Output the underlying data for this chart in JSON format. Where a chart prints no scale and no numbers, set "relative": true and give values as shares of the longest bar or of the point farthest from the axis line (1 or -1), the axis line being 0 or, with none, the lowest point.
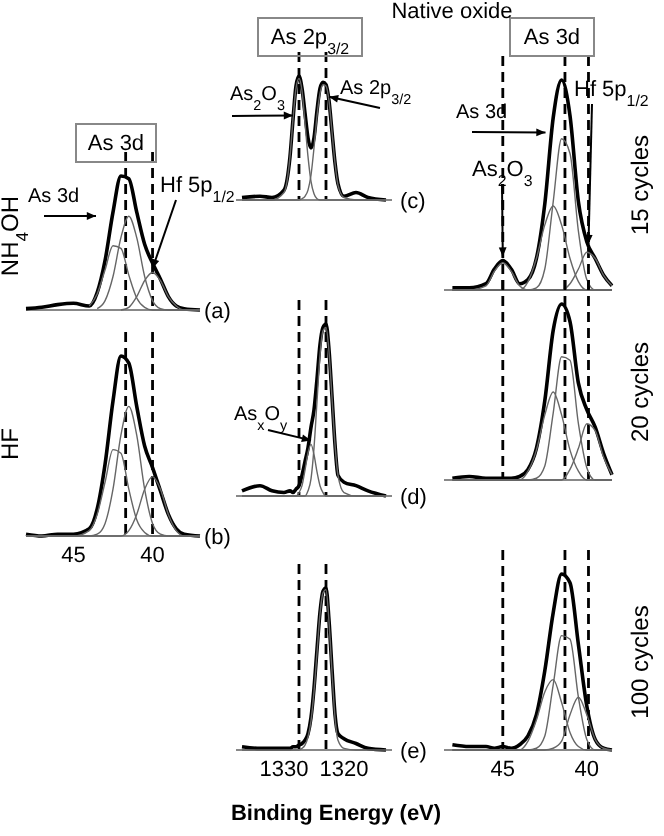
{
  "chart_data": [
    {
      "type": "line",
      "relative": true,
      "title": "As 3d",
      "ylabel": "NH$_{4}$OH",
      "x": [
        48,
        47,
        46,
        45,
        44,
        43.5,
        43,
        42.5,
        42,
        41.5,
        41,
        40.5,
        40,
        39.5,
        39,
        38.5,
        38,
        37
      ],
      "xlim": [
        48,
        37
      ],
      "xticks": [
        45,
        40
      ],
      "tick_labels": false,
      "series": [
        {
          "color": "#000000",
          "values": [
            0.01,
            0.02,
            0.04,
            0.05,
            0.03,
            0.13,
            0.37,
            0.73,
            1.0,
            0.98,
            0.73,
            0.49,
            0.35,
            0.23,
            0.1,
            0.03,
            0.01,
            0
          ]
        },
        {
          "color": "#666666",
          "values": [
            null,
            null,
            null,
            null,
            0.03,
            0.12,
            0.3,
            0.48,
            0.46,
            0.26,
            0.09,
            0.02,
            0,
            0,
            0,
            0,
            0,
            0
          ]
        },
        {
          "color": "#666666",
          "values": [
            null,
            null,
            null,
            null,
            null,
            0.01,
            0.07,
            0.25,
            0.54,
            0.7,
            0.54,
            0.25,
            0.07,
            0.01,
            0,
            0,
            0,
            0
          ]
        },
        {
          "color": "#666666",
          "values": [
            null,
            null,
            null,
            null,
            null,
            null,
            null,
            null,
            0,
            0.02,
            0.1,
            0.22,
            0.28,
            0.22,
            0.1,
            0.03,
            0,
            0
          ]
        }
      ],
      "ref_lines": [
        {
          "axis": "x",
          "value": 41.7,
          "color": "#000000",
          "line_style": "dashed"
        },
        {
          "axis": "x",
          "value": 40.0,
          "color": "#000000",
          "line_style": "dashed"
        }
      ],
      "annotations": [
        "As 3d",
        {
          "text": "Hf 5p$_{1/2}$",
          "x": 40.0,
          "y": 0.28
        },
        "(a)"
      ]
    },
    {
      "type": "line",
      "relative": true,
      "ylabel": "HF",
      "x": [
        48,
        47,
        46,
        45,
        44,
        43.5,
        43,
        42.5,
        42,
        41.5,
        41,
        40.5,
        40,
        39.5,
        39,
        38.5,
        38,
        37
      ],
      "xlim": [
        48,
        37
      ],
      "xticks": [
        45,
        40
      ],
      "tick_labels": "x",
      "series": [
        {
          "color": "#000000",
          "values": [
            0.01,
            0,
            0.01,
            0.01,
            0.04,
            0.15,
            0.4,
            0.75,
            1.0,
            0.96,
            0.72,
            0.5,
            0.38,
            0.25,
            0.12,
            0.04,
            0.01,
            0
          ]
        },
        {
          "color": "#666666",
          "values": [
            0,
            0,
            0,
            0,
            0.03,
            0.12,
            0.3,
            0.48,
            0.46,
            0.26,
            0.09,
            0.02,
            0,
            0,
            0,
            0,
            0,
            0
          ]
        },
        {
          "color": "#666666",
          "values": [
            0,
            0,
            0,
            0,
            0,
            0.01,
            0.07,
            0.26,
            0.56,
            0.72,
            0.56,
            0.26,
            0.07,
            0.01,
            0,
            0,
            0,
            0
          ]
        },
        {
          "color": "#666666",
          "values": [
            0,
            0,
            0,
            0,
            0,
            0,
            0,
            0,
            0,
            0.03,
            0.12,
            0.26,
            0.33,
            0.26,
            0.12,
            0.03,
            0,
            0
          ]
        }
      ],
      "ref_lines": [
        {
          "axis": "x",
          "value": 41.7,
          "color": "#000000",
          "line_style": "dashed"
        },
        {
          "axis": "x",
          "value": 40.0,
          "color": "#000000",
          "line_style": "dashed"
        }
      ],
      "annotations": [
        "(b)"
      ]
    },
    {
      "type": "line",
      "relative": true,
      "title": "As 2p$_{3/2}$",
      "x": [
        1337,
        1334,
        1332,
        1330,
        1329,
        1328.5,
        1328,
        1327.5,
        1327,
        1326.5,
        1326,
        1325.5,
        1325,
        1324.5,
        1324,
        1323.5,
        1323,
        1322.5,
        1322,
        1321.5,
        1321,
        1320,
        1318,
        1316,
        1313
      ],
      "xlim": [
        1338,
        1312
      ],
      "xticks": [
        1330,
        1320
      ],
      "tick_labels": false,
      "series": [
        {
          "color": "#000000",
          "values": [
            0.02,
            0.03,
            0.02,
            0.08,
            0.35,
            0.65,
            0.92,
            1.0,
            0.9,
            0.7,
            0.5,
            0.42,
            0.5,
            0.72,
            0.9,
            0.95,
            0.93,
            0.8,
            0.55,
            0.3,
            0.13,
            0.03,
            0.06,
            0.02,
            0
          ]
        },
        {
          "color": "#666666",
          "values": [
            0,
            0,
            0,
            0.06,
            0.35,
            0.65,
            0.9,
            0.98,
            0.88,
            0.62,
            0.35,
            0.15,
            0.05,
            0.01,
            0,
            0,
            0,
            0,
            0,
            0,
            0,
            0,
            0,
            0,
            0
          ]
        },
        {
          "color": "#666666",
          "values": [
            0,
            0,
            0,
            0,
            0,
            0,
            0,
            0,
            0.01,
            0.03,
            0.08,
            0.2,
            0.42,
            0.68,
            0.86,
            0.93,
            0.92,
            0.8,
            0.55,
            0.3,
            0.12,
            0.02,
            0,
            0,
            0
          ]
        }
      ],
      "ref_lines": [
        {
          "axis": "x",
          "value": 1327.5,
          "color": "#000000",
          "line_style": "dashed"
        },
        {
          "axis": "x",
          "value": 1323,
          "color": "#000000",
          "line_style": "dashed"
        }
      ],
      "annotations": [
        {
          "text": "As$_{2}$O$_{3}$",
          "x": 1328.5,
          "y": 0.65
        },
        {
          "text": "As 2p$_{3/2}$",
          "x": 1322.5,
          "y": 0.8
        },
        "(c)"
      ]
    },
    {
      "type": "line",
      "relative": true,
      "x": [
        1337,
        1334,
        1332,
        1330,
        1329,
        1328.5,
        1328,
        1327.5,
        1327,
        1326.5,
        1326,
        1325.5,
        1325,
        1324.5,
        1324,
        1323.5,
        1323,
        1322.5,
        1322,
        1321.5,
        1321,
        1320,
        1318,
        1316,
        1313
      ],
      "xlim": [
        1338,
        1312
      ],
      "xticks": [
        1330,
        1320
      ],
      "tick_labels": false,
      "series": [
        {
          "color": "#000000",
          "values": [
            0.03,
            0.06,
            0.03,
            0.02,
            0.03,
            0.02,
            0.04,
            0.06,
            0.12,
            0.2,
            0.28,
            0.4,
            0.5,
            0.68,
            0.88,
            0.98,
            1.0,
            0.85,
            0.58,
            0.3,
            0.12,
            0.08,
            0.06,
            0.03,
            0
          ]
        },
        {
          "color": "#666666",
          "values": [
            0,
            0,
            0,
            0,
            0,
            0,
            0,
            0,
            0,
            0,
            0.03,
            0.1,
            0.28,
            0.55,
            0.82,
            0.96,
            0.98,
            0.84,
            0.57,
            0.3,
            0.12,
            0.02,
            0,
            0,
            0
          ]
        },
        {
          "color": "#666666",
          "values": [
            0,
            0,
            0,
            0,
            0,
            0,
            0,
            0.02,
            0.06,
            0.15,
            0.25,
            0.3,
            0.24,
            0.14,
            0.06,
            0.02,
            0,
            0,
            0,
            0,
            0,
            0,
            0,
            0,
            0
          ]
        }
      ],
      "ref_lines": [
        {
          "axis": "x",
          "value": 1327.5,
          "color": "#000000",
          "line_style": "dashed"
        },
        {
          "axis": "x",
          "value": 1323,
          "color": "#000000",
          "line_style": "dashed"
        }
      ],
      "annotations": [
        {
          "text": "As$_{x}$O$_{y}$",
          "x": 1325.5,
          "y": 0.3
        },
        "(d)"
      ]
    },
    {
      "type": "line",
      "relative": true,
      "xlabel": "Binding Energy (eV)",
      "x": [
        1337,
        1334,
        1332,
        1330,
        1329,
        1328.5,
        1328,
        1327.5,
        1327,
        1326.5,
        1326,
        1325.5,
        1325,
        1324.5,
        1324,
        1323.5,
        1323,
        1322.5,
        1322,
        1321.5,
        1321,
        1320,
        1318,
        1316,
        1313
      ],
      "xlim": [
        1338,
        1312
      ],
      "xticks": [
        1330,
        1320
      ],
      "tick_labels": "x",
      "series": [
        {
          "color": "#000000",
          "values": [
            0.02,
            0.01,
            0.01,
            0.01,
            0.01,
            0.02,
            0.02,
            0.03,
            0.04,
            0.06,
            0.1,
            0.2,
            0.38,
            0.62,
            0.85,
            0.98,
            1.0,
            0.8,
            0.5,
            0.22,
            0.1,
            0.07,
            0.04,
            0.01,
            0
          ]
        },
        {
          "color": "#666666",
          "values": [
            0,
            0,
            0,
            0,
            0,
            0,
            0,
            0,
            0.01,
            0.03,
            0.08,
            0.18,
            0.36,
            0.6,
            0.84,
            0.97,
            0.99,
            0.79,
            0.48,
            0.2,
            0.06,
            0.01,
            0,
            0,
            0
          ]
        }
      ],
      "ref_lines": [
        {
          "axis": "x",
          "value": 1327.5,
          "color": "#000000",
          "line_style": "dashed"
        },
        {
          "axis": "x",
          "value": 1323,
          "color": "#000000",
          "line_style": "dashed"
        }
      ],
      "annotations": [
        "(e)"
      ]
    },
    {
      "type": "line",
      "relative": true,
      "title": "As 3d",
      "subtitle": "Native oxide",
      "y2label": "15 cycles",
      "x": [
        48,
        47,
        46,
        45.5,
        45,
        44.5,
        44,
        43.5,
        43,
        42.5,
        42,
        41.5,
        41,
        40.5,
        40,
        39.5,
        39,
        38.5
      ],
      "xlim": [
        48.5,
        38.5
      ],
      "xticks": [
        45,
        40
      ],
      "tick_labels": false,
      "series": [
        {
          "color": "#000000",
          "values": [
            0.01,
            0.01,
            0.03,
            0.1,
            0.14,
            0.1,
            0.03,
            0.05,
            0.15,
            0.41,
            0.82,
            1.0,
            0.83,
            0.42,
            0.23,
            0.15,
            0.07,
            0.02
          ]
        },
        {
          "color": "#666666",
          "values": [
            0,
            0,
            0.02,
            0.09,
            0.13,
            0.09,
            0.02,
            0,
            0,
            0,
            0,
            0,
            0,
            0,
            0,
            0,
            0,
            0
          ]
        },
        {
          "color": "#666666",
          "values": [
            0,
            0,
            0,
            0,
            0,
            0,
            0,
            0.04,
            0.15,
            0.31,
            0.4,
            0.31,
            0.15,
            0.04,
            0,
            0,
            0,
            0
          ]
        },
        {
          "color": "#666666",
          "values": [
            0,
            0,
            0,
            0,
            0,
            0,
            0,
            0,
            0.01,
            0.1,
            0.42,
            0.72,
            0.65,
            0.28,
            0.05,
            0,
            0,
            0
          ]
        },
        {
          "color": "#666666",
          "values": [
            0,
            0,
            0,
            0,
            0,
            0,
            0,
            0,
            0,
            0,
            0,
            0,
            0.03,
            0.1,
            0.18,
            0.15,
            0.07,
            0.02
          ]
        }
      ],
      "ref_lines": [
        {
          "axis": "x",
          "value": 45.0,
          "color": "#000000",
          "line_style": "dashed"
        },
        {
          "axis": "x",
          "value": 41.3,
          "color": "#000000",
          "line_style": "dashed"
        },
        {
          "axis": "x",
          "value": 39.9,
          "color": "#000000",
          "line_style": "dashed"
        }
      ],
      "annotations": [
        {
          "text": "As 3d",
          "x": 42.1,
          "y": 0.75
        },
        {
          "text": "Hf 5p$_{1/2}$",
          "x": 39.9,
          "y": 0.2
        },
        {
          "text": "As$_{2}$O$_{3}$",
          "x": 45.0,
          "y": 0.14
        }
      ]
    },
    {
      "type": "line",
      "relative": true,
      "y2label": "20 cycles",
      "x": [
        48,
        47,
        46,
        45.5,
        45,
        44.5,
        44,
        43.5,
        43,
        42.5,
        42,
        41.5,
        41,
        40.5,
        40,
        39.5,
        39,
        38.5
      ],
      "xlim": [
        48.5,
        38.5
      ],
      "xticks": [
        45,
        40
      ],
      "tick_labels": false,
      "series": [
        {
          "color": "#000000",
          "values": [
            0.01,
            0.02,
            0.01,
            0.01,
            0.01,
            0.01,
            0.02,
            0.06,
            0.18,
            0.45,
            0.85,
            1.0,
            0.9,
            0.55,
            0.4,
            0.3,
            0.15,
            0.03
          ]
        },
        {
          "color": "#666666",
          "values": [
            0,
            0,
            0,
            0,
            0,
            0,
            0,
            0.05,
            0.17,
            0.37,
            0.5,
            0.37,
            0.17,
            0.05,
            0,
            0,
            0,
            0
          ]
        },
        {
          "color": "#666666",
          "values": [
            0,
            0,
            0,
            0,
            0,
            0,
            0,
            0,
            0.01,
            0.08,
            0.38,
            0.7,
            0.68,
            0.32,
            0.07,
            0,
            0,
            0
          ]
        },
        {
          "color": "#666666",
          "values": [
            0,
            0,
            0,
            0,
            0,
            0,
            0,
            0,
            0,
            0,
            0,
            0,
            0.06,
            0.18,
            0.32,
            0.28,
            0.13,
            0.03
          ]
        }
      ],
      "ref_lines": [
        {
          "axis": "x",
          "value": 45.0,
          "color": "#000000",
          "line_style": "dashed"
        },
        {
          "axis": "x",
          "value": 41.3,
          "color": "#000000",
          "line_style": "dashed"
        },
        {
          "axis": "x",
          "value": 39.9,
          "color": "#000000",
          "line_style": "dashed"
        }
      ]
    },
    {
      "type": "line",
      "relative": true,
      "y2label": "100 cycles",
      "x": [
        48,
        47,
        46,
        45.5,
        45,
        44.5,
        44,
        43.5,
        43,
        42.5,
        42,
        41.5,
        41,
        40.5,
        40,
        39.5,
        39,
        38.5
      ],
      "xlim": [
        48.5,
        38.5
      ],
      "xticks": [
        45,
        40
      ],
      "tick_labels": "x",
      "series": [
        {
          "color": "#000000",
          "values": [
            0.03,
            0.02,
            0.02,
            0.01,
            0.02,
            0.01,
            0.03,
            0.08,
            0.2,
            0.45,
            0.78,
            1.0,
            0.95,
            0.6,
            0.25,
            0.06,
            0.01,
            0
          ]
        },
        {
          "color": "#666666",
          "values": [
            0,
            0,
            0,
            0,
            0,
            0,
            0,
            0.05,
            0.17,
            0.33,
            0.4,
            0.27,
            0.1,
            0.02,
            0,
            0,
            0,
            0
          ]
        },
        {
          "color": "#666666",
          "values": [
            0,
            0,
            0,
            0,
            0,
            0,
            0,
            0,
            0.01,
            0.08,
            0.37,
            0.65,
            0.63,
            0.3,
            0.06,
            0,
            0,
            0
          ]
        },
        {
          "color": "#666666",
          "values": [
            0,
            0,
            0,
            0,
            0,
            0,
            0,
            0,
            0,
            0,
            0.01,
            0.05,
            0.2,
            0.3,
            0.2,
            0.06,
            0.01,
            0
          ]
        }
      ],
      "ref_lines": [
        {
          "axis": "x",
          "value": 45.0,
          "color": "#000000",
          "line_style": "dashed"
        },
        {
          "axis": "x",
          "value": 41.3,
          "color": "#000000",
          "line_style": "dashed"
        },
        {
          "axis": "x",
          "value": 39.9,
          "color": "#000000",
          "line_style": "dashed"
        }
      ]
    }
  ]
}
